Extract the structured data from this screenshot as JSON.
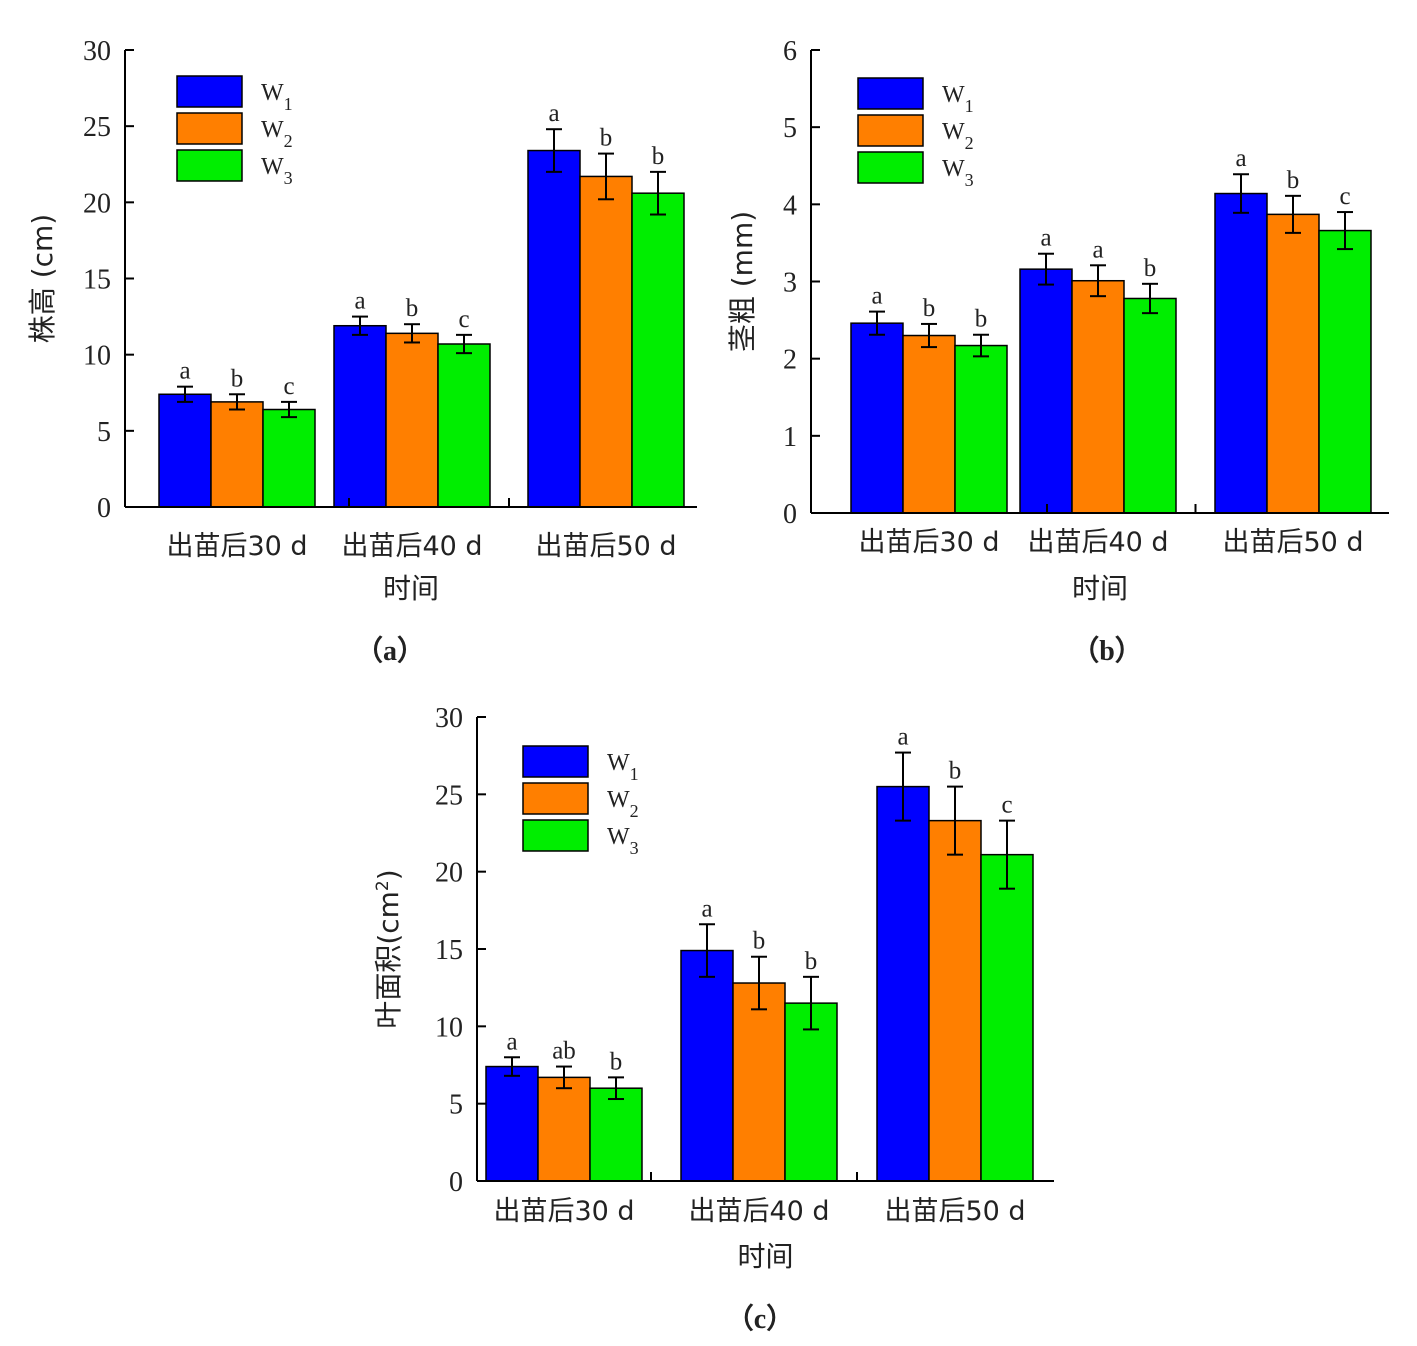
{
  "colors": {
    "W1": "#0000ff",
    "W2": "#ff7f00",
    "W3": "#00ee00",
    "axis": "#000000"
  },
  "chart_data": [
    {
      "type": "bar",
      "panel": "（a）",
      "xlabel": "时间",
      "ylabel": "株高 (cm)",
      "ylim": [
        0,
        30
      ],
      "yticks": [
        0,
        5,
        10,
        15,
        20,
        25,
        30
      ],
      "legend": "top-left",
      "grid": false,
      "categories": [
        "出苗后30 d",
        "出苗后40 d",
        "出苗后50 d"
      ],
      "series": [
        {
          "name": "W",
          "sub": "1",
          "color_key": "W1",
          "values": [
            7.4,
            11.9,
            23.4
          ],
          "errors": [
            0.5,
            0.6,
            1.4
          ],
          "sig": [
            "a",
            "a",
            "a"
          ]
        },
        {
          "name": "W",
          "sub": "2",
          "color_key": "W2",
          "values": [
            6.9,
            11.4,
            21.7
          ],
          "errors": [
            0.5,
            0.6,
            1.5
          ],
          "sig": [
            "b",
            "b",
            "b"
          ]
        },
        {
          "name": "W",
          "sub": "3",
          "color_key": "W3",
          "values": [
            6.4,
            10.7,
            20.6
          ],
          "errors": [
            0.5,
            0.6,
            1.4
          ],
          "sig": [
            "c",
            "c",
            "b"
          ]
        }
      ]
    },
    {
      "type": "bar",
      "panel": "（b）",
      "xlabel": "时间",
      "ylabel": "茎粗 (mm)",
      "ylim": [
        0,
        6
      ],
      "yticks": [
        0,
        1,
        2,
        3,
        4,
        5,
        6
      ],
      "legend": "top-left",
      "grid": false,
      "categories": [
        "出苗后30 d",
        "出苗后40 d",
        "出苗后50 d"
      ],
      "series": [
        {
          "name": "W",
          "sub": "1",
          "color_key": "W1",
          "values": [
            2.46,
            3.16,
            4.14
          ],
          "errors": [
            0.15,
            0.2,
            0.25
          ],
          "sig": [
            "a",
            "a",
            "a"
          ]
        },
        {
          "name": "W",
          "sub": "2",
          "color_key": "W2",
          "values": [
            2.3,
            3.01,
            3.87
          ],
          "errors": [
            0.15,
            0.2,
            0.24
          ],
          "sig": [
            "b",
            "a",
            "b"
          ]
        },
        {
          "name": "W",
          "sub": "3",
          "color_key": "W3",
          "values": [
            2.17,
            2.78,
            3.66
          ],
          "errors": [
            0.14,
            0.19,
            0.24
          ],
          "sig": [
            "b",
            "b",
            "c"
          ]
        }
      ]
    },
    {
      "type": "bar",
      "panel": "（c）",
      "xlabel": "时间",
      "ylabel": "叶面积(cm",
      "ylabel_sup": "2",
      "ylabel_end": ")",
      "ylim": [
        0,
        30
      ],
      "yticks": [
        0,
        5,
        10,
        15,
        20,
        25,
        30
      ],
      "legend": "top-left",
      "grid": false,
      "categories": [
        "出苗后30 d",
        "出苗后40 d",
        "出苗后50 d"
      ],
      "series": [
        {
          "name": "W",
          "sub": "1",
          "color_key": "W1",
          "values": [
            7.4,
            14.9,
            25.5
          ],
          "errors": [
            0.6,
            1.7,
            2.2
          ],
          "sig": [
            "a",
            "a",
            "a"
          ]
        },
        {
          "name": "W",
          "sub": "2",
          "color_key": "W2",
          "values": [
            6.7,
            12.8,
            23.3
          ],
          "errors": [
            0.7,
            1.7,
            2.2
          ],
          "sig": [
            "ab",
            "b",
            "b"
          ]
        },
        {
          "name": "W",
          "sub": "3",
          "color_key": "W3",
          "values": [
            6.0,
            11.5,
            21.1
          ],
          "errors": [
            0.7,
            1.7,
            2.2
          ],
          "sig": [
            "b",
            "b",
            "c"
          ]
        }
      ]
    }
  ]
}
